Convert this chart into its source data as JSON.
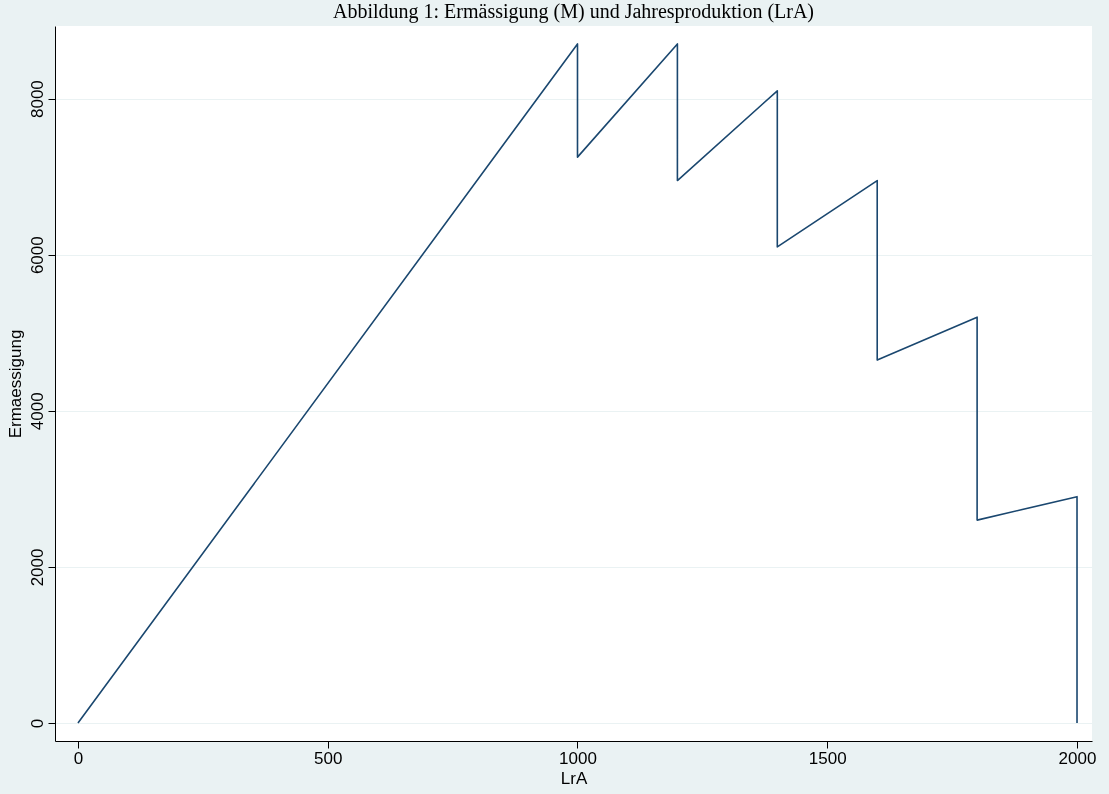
{
  "chart_data": {
    "type": "line",
    "title": "Abbildung 1: Ermässigung (M) und Jahresproduktion (LrA)",
    "xlabel": "LrA",
    "ylabel": "Ermaessigung",
    "x": [
      0,
      1000,
      1000,
      1200,
      1200,
      1400,
      1400,
      1600,
      1600,
      1800,
      1800,
      2000,
      2000
    ],
    "series": [
      {
        "color": "#1a476f",
        "values": [
          0,
          8700,
          7250,
          8700,
          6950,
          8100,
          6100,
          6950,
          4650,
          5200,
          2600,
          2900,
          0
        ]
      }
    ],
    "xlim": [
      -46,
      2030
    ],
    "ylim": [
      -230,
      8930
    ],
    "xticks": [
      0,
      500,
      1000,
      1500,
      2000
    ],
    "yticks": [
      0,
      2000,
      4000,
      6000,
      8000
    ],
    "grid": "y",
    "legend": false,
    "marker": "none",
    "line_style": "solid"
  }
}
